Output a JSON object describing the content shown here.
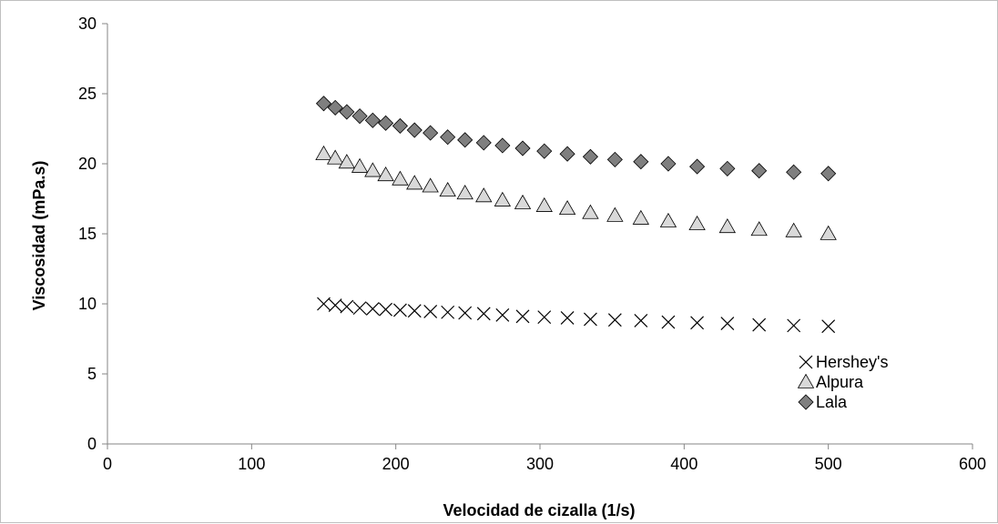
{
  "chart_data": {
    "type": "scatter",
    "title": "",
    "xlabel": "Velocidad de cizalla (1/s)",
    "ylabel": "Viscosidad (mPa.s)",
    "xlim": [
      0,
      600
    ],
    "ylim": [
      0,
      30
    ],
    "x_ticks": [
      "0",
      "100",
      "200",
      "300",
      "400",
      "500",
      "600"
    ],
    "y_ticks": [
      "0",
      "5",
      "10",
      "15",
      "20",
      "25",
      "30"
    ],
    "grid": false,
    "legend": "right-bottom",
    "x": [
      150,
      158,
      166,
      175,
      184,
      193,
      203,
      213,
      224,
      236,
      248,
      261,
      274,
      288,
      303,
      319,
      335,
      352,
      370,
      389,
      409,
      430,
      452,
      476,
      500
    ],
    "series": [
      {
        "name": "Hershey's",
        "marker": "x-marker",
        "color": "#000000",
        "values": [
          10.0,
          9.9,
          9.8,
          9.7,
          9.65,
          9.6,
          9.55,
          9.5,
          9.45,
          9.4,
          9.35,
          9.3,
          9.2,
          9.1,
          9.05,
          9.0,
          8.9,
          8.85,
          8.8,
          8.7,
          8.65,
          8.6,
          8.5,
          8.45,
          8.4
        ]
      },
      {
        "name": "Alpura",
        "marker": "triangle-marker",
        "color": "#d9d9d9",
        "values": [
          20.7,
          20.4,
          20.1,
          19.8,
          19.5,
          19.2,
          18.9,
          18.6,
          18.4,
          18.1,
          17.9,
          17.7,
          17.4,
          17.2,
          17.0,
          16.8,
          16.5,
          16.3,
          16.1,
          15.9,
          15.7,
          15.5,
          15.3,
          15.2,
          15.0
        ]
      },
      {
        "name": "Lala",
        "marker": "diamond-marker",
        "color": "#7f7f7f",
        "values": [
          24.3,
          24.0,
          23.7,
          23.4,
          23.1,
          22.9,
          22.7,
          22.4,
          22.2,
          21.9,
          21.7,
          21.5,
          21.3,
          21.1,
          20.9,
          20.7,
          20.5,
          20.3,
          20.15,
          20.0,
          19.8,
          19.65,
          19.5,
          19.4,
          19.3
        ]
      }
    ]
  }
}
